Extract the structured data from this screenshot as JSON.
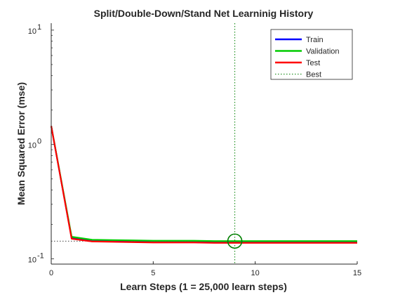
{
  "chart_data": {
    "type": "line",
    "title": "Split/Double-Down/Stand Net Learninig History",
    "xlabel": "Learn Steps (1 = 25,000 learn steps)",
    "ylabel": "Mean Squared Error  (mse)",
    "xlim": [
      0,
      15
    ],
    "ylim": [
      0.09,
      11.5
    ],
    "yscale": "log",
    "grid": false,
    "legend_position": "top-right",
    "x_ticks": [
      {
        "value": 0,
        "label": "0"
      },
      {
        "value": 5,
        "label": "5"
      },
      {
        "value": 10,
        "label": "10"
      },
      {
        "value": 15,
        "label": "15"
      }
    ],
    "y_ticks": [
      {
        "value": 0.1,
        "base": "10",
        "exp": "-1"
      },
      {
        "value": 1,
        "base": "10",
        "exp": "0"
      },
      {
        "value": 10,
        "base": "10",
        "exp": "1"
      }
    ],
    "x": [
      0,
      1,
      2,
      3,
      4,
      5,
      6,
      7,
      8,
      9,
      10,
      11,
      12,
      13,
      14,
      15
    ],
    "series": [
      {
        "name": "Train",
        "color": "#0000ff",
        "values": [
          1.45,
          0.152,
          0.143,
          0.142,
          0.141,
          0.14,
          0.14,
          0.14,
          0.139,
          0.139,
          0.139,
          0.139,
          0.139,
          0.139,
          0.139,
          0.139
        ]
      },
      {
        "name": "Validation",
        "color": "#00cc00",
        "values": [
          1.45,
          0.156,
          0.147,
          0.146,
          0.145,
          0.144,
          0.144,
          0.144,
          0.143,
          0.143,
          0.143,
          0.143,
          0.143,
          0.143,
          0.143,
          0.143
        ]
      },
      {
        "name": "Test",
        "color": "#ff0000",
        "values": [
          1.45,
          0.15,
          0.142,
          0.141,
          0.14,
          0.139,
          0.139,
          0.139,
          0.138,
          0.138,
          0.138,
          0.138,
          0.138,
          0.138,
          0.138,
          0.138
        ]
      }
    ],
    "best": {
      "name": "Best",
      "color": "#008000",
      "x": 9,
      "y": 0.143
    }
  }
}
